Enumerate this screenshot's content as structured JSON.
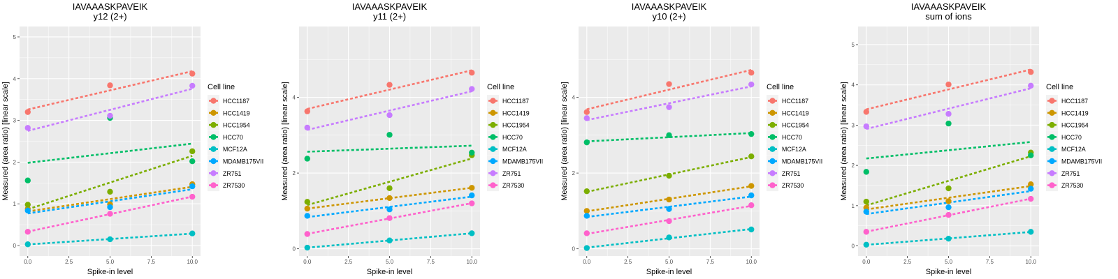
{
  "chart_data": [
    {
      "type": "scatter",
      "title": "IAVAAASKPAVEIK",
      "subtitle": "y12 (2+)",
      "xlabel": "Spike-in level",
      "ylabel": "Measured (area ratio) [linear scale]",
      "xlim": [
        -0.5,
        10.5
      ],
      "ylim": [
        -0.25,
        5.25
      ],
      "xticks": [
        0,
        2.5,
        5,
        7.5,
        10
      ],
      "xtick_labels": [
        "0.0",
        "2.5",
        "5.0",
        "7.5",
        "10.0"
      ],
      "yticks": [
        0,
        1,
        2,
        3,
        4,
        5
      ],
      "ytick_labels": [
        "0",
        "1",
        "2",
        "3",
        "4",
        "5"
      ],
      "grid": true,
      "trendline": "linear fit (dashed)",
      "x": [
        0,
        5,
        10
      ],
      "series": [
        {
          "name": "HCC1187",
          "values": [
            3.2,
            3.84,
            4.12
          ]
        },
        {
          "name": "HCC1419",
          "values": [
            0.88,
            0.99,
            1.47
          ]
        },
        {
          "name": "HCC1954",
          "values": [
            0.98,
            1.29,
            2.26
          ]
        },
        {
          "name": "HCC70",
          "values": [
            1.56,
            3.06,
            2.02
          ]
        },
        {
          "name": "MCF12A",
          "values": [
            0.03,
            0.15,
            0.29
          ]
        },
        {
          "name": "MDAMB175VII",
          "values": [
            0.84,
            0.92,
            1.42
          ]
        },
        {
          "name": "ZR751",
          "values": [
            2.82,
            3.11,
            3.83
          ]
        },
        {
          "name": "ZR7530",
          "values": [
            0.33,
            0.76,
            1.17
          ]
        }
      ]
    },
    {
      "type": "scatter",
      "title": "IAVAAASKPAVEIK",
      "subtitle": "y11 (2+)",
      "xlabel": "Spike-in level",
      "ylabel": "Measured (area ratio) [linear scale]",
      "xlim": [
        -0.5,
        10.5
      ],
      "ylim": [
        -0.19,
        5.87
      ],
      "xticks": [
        0,
        2.5,
        5,
        7.5,
        10
      ],
      "xtick_labels": [
        "0.0",
        "2.5",
        "5.0",
        "7.5",
        "10.0"
      ],
      "yticks": [
        0,
        2,
        4
      ],
      "ytick_labels": [
        "0",
        "2",
        "4"
      ],
      "grid": true,
      "trendline": "linear fit (dashed)",
      "x": [
        0,
        5,
        10
      ],
      "series": [
        {
          "name": "HCC1187",
          "values": [
            3.63,
            4.33,
            4.65
          ]
        },
        {
          "name": "HCC1419",
          "values": [
            1.06,
            1.34,
            1.61
          ]
        },
        {
          "name": "HCC1954",
          "values": [
            1.24,
            1.6,
            2.47
          ]
        },
        {
          "name": "HCC70",
          "values": [
            2.38,
            3.01,
            2.54
          ]
        },
        {
          "name": "MCF12A",
          "values": [
            0.03,
            0.22,
            0.41
          ]
        },
        {
          "name": "MDAMB175VII",
          "values": [
            0.87,
            1.04,
            1.41
          ]
        },
        {
          "name": "ZR751",
          "values": [
            3.2,
            3.53,
            4.22
          ]
        },
        {
          "name": "ZR7530",
          "values": [
            0.39,
            0.81,
            1.2
          ]
        }
      ]
    },
    {
      "type": "scatter",
      "title": "IAVAAASKPAVEIK",
      "subtitle": "y10 (2+)",
      "xlabel": "Spike-in level",
      "ylabel": "Measured (area ratio) [linear scale]",
      "xlim": [
        -0.5,
        10.5
      ],
      "ylim": [
        -0.19,
        5.87
      ],
      "xticks": [
        0,
        2.5,
        5,
        7.5,
        10
      ],
      "xtick_labels": [
        "0.0",
        "2.5",
        "5.0",
        "7.5",
        "10.0"
      ],
      "yticks": [
        0,
        2,
        4
      ],
      "ytick_labels": [
        "0",
        "2",
        "4"
      ],
      "grid": true,
      "trendline": "linear fit (dashed)",
      "x": [
        0,
        5,
        10
      ],
      "series": [
        {
          "name": "HCC1187",
          "values": [
            3.61,
            4.35,
            4.65
          ]
        },
        {
          "name": "HCC1419",
          "values": [
            1.0,
            1.3,
            1.66
          ]
        },
        {
          "name": "HCC1954",
          "values": [
            1.52,
            1.93,
            2.44
          ]
        },
        {
          "name": "HCC70",
          "values": [
            2.81,
            3.0,
            3.03
          ]
        },
        {
          "name": "MCF12A",
          "values": [
            0.02,
            0.3,
            0.51
          ]
        },
        {
          "name": "MDAMB175VII",
          "values": [
            0.87,
            1.05,
            1.41
          ]
        },
        {
          "name": "ZR751",
          "values": [
            3.45,
            3.74,
            4.34
          ]
        },
        {
          "name": "ZR7530",
          "values": [
            0.41,
            0.73,
            1.15
          ]
        }
      ]
    },
    {
      "type": "scatter",
      "title": "IAVAAASKPAVEIK",
      "subtitle": "sum of ions",
      "xlabel": "Spike-in level",
      "ylabel": "Measured (area ratio) [linear scale]",
      "xlim": [
        -0.5,
        10.5
      ],
      "ylim": [
        -0.25,
        5.45
      ],
      "xticks": [
        0,
        2.5,
        5,
        7.5,
        10
      ],
      "xtick_labels": [
        "0.0",
        "2.5",
        "5.0",
        "7.5",
        "10.0"
      ],
      "yticks": [
        0,
        1,
        2,
        3,
        4,
        5
      ],
      "ytick_labels": [
        "0",
        "1",
        "2",
        "3",
        "4",
        "5"
      ],
      "grid": true,
      "trendline": "linear fit (dashed)",
      "x": [
        0,
        5,
        10
      ],
      "series": [
        {
          "name": "HCC1187",
          "values": [
            3.33,
            4.01,
            4.32
          ]
        },
        {
          "name": "HCC1419",
          "values": [
            0.95,
            1.11,
            1.53
          ]
        },
        {
          "name": "HCC1954",
          "values": [
            1.1,
            1.43,
            2.32
          ]
        },
        {
          "name": "HCC70",
          "values": [
            1.84,
            3.04,
            2.25
          ]
        },
        {
          "name": "MCF12A",
          "values": [
            0.03,
            0.18,
            0.35
          ]
        },
        {
          "name": "MDAMB175VII",
          "values": [
            0.85,
            0.96,
            1.42
          ]
        },
        {
          "name": "ZR751",
          "values": [
            2.97,
            3.28,
            3.98
          ]
        },
        {
          "name": "ZR7530",
          "values": [
            0.35,
            0.77,
            1.17
          ]
        }
      ]
    }
  ],
  "legend": {
    "title": "Cell line",
    "position": "right",
    "entries": [
      {
        "name": "HCC1187",
        "color": "#F8766D"
      },
      {
        "name": "HCC1419",
        "color": "#CD9600"
      },
      {
        "name": "HCC1954",
        "color": "#7CAE00"
      },
      {
        "name": "HCC70",
        "color": "#00BE67"
      },
      {
        "name": "MCF12A",
        "color": "#00BFC4"
      },
      {
        "name": "MDAMB175VII",
        "color": "#00A9FF"
      },
      {
        "name": "ZR751",
        "color": "#C77CFF"
      },
      {
        "name": "ZR7530",
        "color": "#FF61CC"
      }
    ]
  },
  "colors": {
    "panel_background": "#EBEBEB",
    "grid_major": "#FFFFFF",
    "tick_text": "#4D4D4D"
  }
}
